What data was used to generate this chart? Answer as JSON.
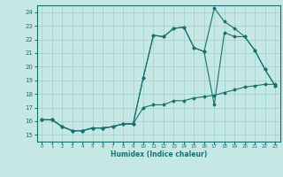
{
  "title": "",
  "xlabel": "Humidex (Indice chaleur)",
  "ylabel": "",
  "bg_color": "#c5e8e5",
  "grid_color": "#9ecece",
  "line_color": "#1a7070",
  "xlim": [
    -0.5,
    23.5
  ],
  "ylim": [
    14.5,
    24.5
  ],
  "yticks": [
    15,
    16,
    17,
    18,
    19,
    20,
    21,
    22,
    23,
    24
  ],
  "xticks": [
    0,
    1,
    2,
    3,
    4,
    5,
    6,
    7,
    8,
    9,
    10,
    11,
    12,
    13,
    14,
    15,
    16,
    17,
    18,
    19,
    20,
    21,
    22,
    23
  ],
  "series": [
    {
      "x": [
        0,
        1,
        2,
        3,
        4,
        5,
        6,
        7,
        8,
        9,
        10,
        11,
        12,
        13,
        14,
        15,
        16,
        17,
        18,
        19,
        20,
        21,
        22,
        23
      ],
      "y": [
        16.1,
        16.1,
        15.6,
        15.3,
        15.3,
        15.5,
        15.5,
        15.6,
        15.8,
        15.8,
        17.0,
        17.2,
        17.2,
        17.5,
        17.5,
        17.7,
        17.8,
        17.9,
        18.1,
        18.3,
        18.5,
        18.6,
        18.7,
        18.7
      ]
    },
    {
      "x": [
        0,
        1,
        2,
        3,
        4,
        5,
        6,
        7,
        8,
        9,
        10,
        11,
        12,
        13,
        14,
        15,
        16,
        17,
        18,
        19,
        20,
        21,
        22,
        23
      ],
      "y": [
        16.1,
        16.1,
        15.6,
        15.3,
        15.3,
        15.5,
        15.5,
        15.6,
        15.8,
        15.8,
        19.2,
        22.3,
        22.2,
        22.8,
        22.9,
        21.4,
        21.1,
        24.3,
        23.3,
        22.8,
        22.2,
        21.2,
        19.8,
        18.6
      ]
    },
    {
      "x": [
        0,
        1,
        2,
        3,
        4,
        5,
        6,
        7,
        8,
        9,
        10,
        11,
        12,
        13,
        14,
        15,
        16,
        17,
        18,
        19,
        20,
        21,
        22,
        23
      ],
      "y": [
        16.1,
        16.1,
        15.6,
        15.3,
        15.3,
        15.5,
        15.5,
        15.6,
        15.8,
        15.8,
        19.2,
        22.3,
        22.2,
        22.8,
        22.9,
        21.4,
        21.1,
        17.2,
        22.5,
        22.2,
        22.2,
        21.2,
        19.8,
        18.6
      ]
    }
  ]
}
